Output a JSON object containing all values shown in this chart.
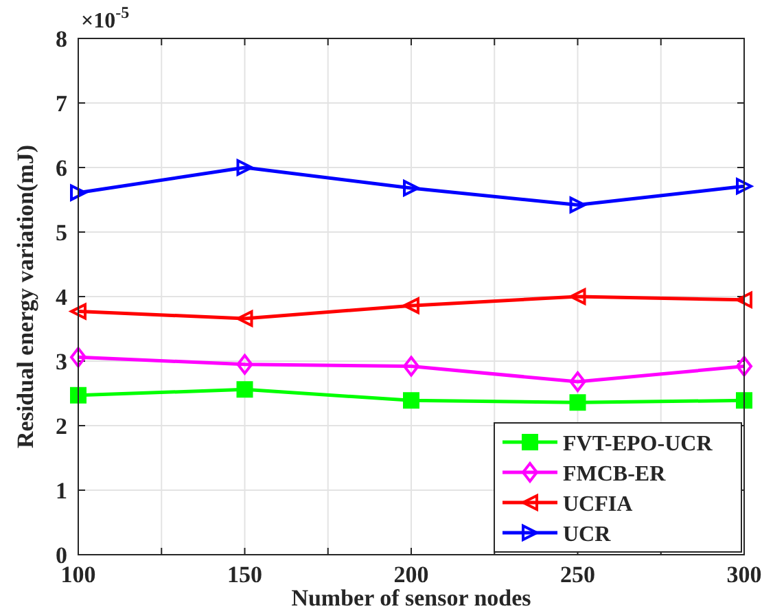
{
  "chart_data": {
    "type": "line",
    "xlabel": "Number of sensor nodes",
    "ylabel": "Residual energy variation(mJ)",
    "annotations": [
      "×10$^{-5}$"
    ],
    "x": [
      100,
      150,
      200,
      250,
      300
    ],
    "series": [
      {
        "name": "FVT-EPO-UCR",
        "color": "#00ff00",
        "marker": "square",
        "values": [
          2.47,
          2.56,
          2.39,
          2.36,
          2.39
        ]
      },
      {
        "name": "FMCB-ER",
        "color": "#ff00ff",
        "marker": "diamond",
        "values": [
          3.06,
          2.95,
          2.92,
          2.68,
          2.92
        ]
      },
      {
        "name": "UCFIA",
        "color": "#ff0000",
        "marker": "triangle-left",
        "values": [
          3.77,
          3.66,
          3.86,
          4.0,
          3.95
        ]
      },
      {
        "name": "UCR",
        "color": "#0000ff",
        "marker": "triangle-right",
        "values": [
          5.61,
          6.0,
          5.68,
          5.42,
          5.71
        ]
      }
    ],
    "xlim": [
      100,
      300
    ],
    "xticks": [
      100,
      {
        "value": 125,
        "label": null
      },
      150,
      {
        "value": 175,
        "label": null
      },
      200,
      {
        "value": 225,
        "label": null
      },
      250,
      {
        "value": 275,
        "label": null
      },
      300
    ],
    "ylim": [
      0,
      8
    ],
    "yticks": [
      0,
      1,
      2,
      3,
      4,
      5,
      6,
      7,
      8
    ],
    "grid": true,
    "legend": "bottom right",
    "line_style": "solid"
  }
}
